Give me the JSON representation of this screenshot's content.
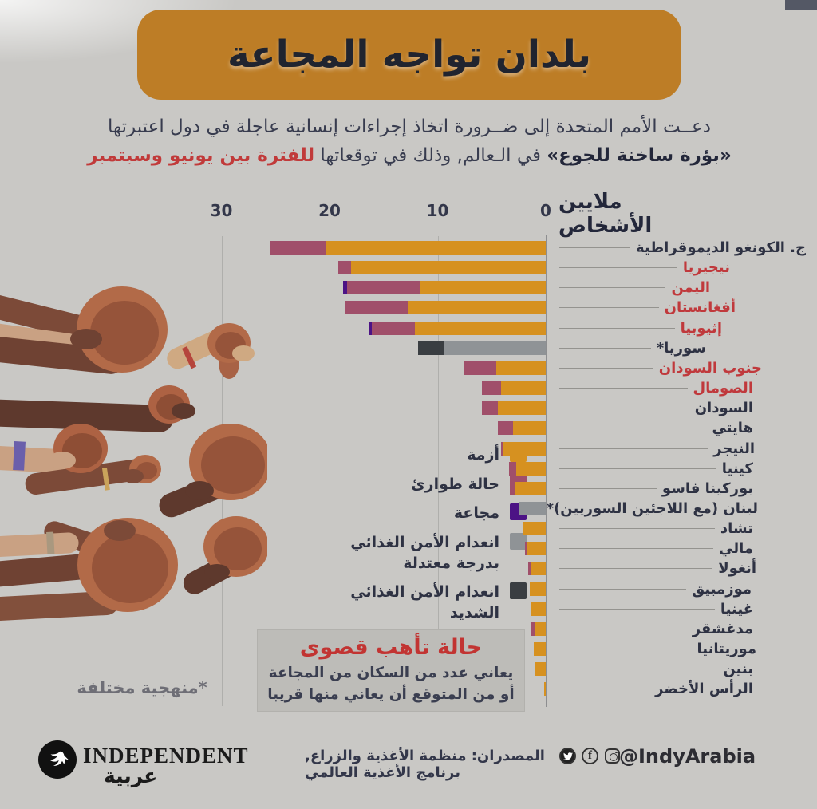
{
  "header": {
    "title": "بلدان تواجه المجاعة"
  },
  "intro": {
    "line1": "دعــت الأمم المتحدة إلى ضــرورة اتخاذ إجراءات إنسانية عاجلة في دول اعتبرتها",
    "line2_bold": "«بؤرة ساخنة للجوع»",
    "line2_mid": " في الـعالم, وذلك في توقعاتها ",
    "line2_red": "للفترة بين يونيو وسبتمبر"
  },
  "chart_data": {
    "type": "bar",
    "orientation": "horizontal-rtl",
    "axis_title": "ملايين الأشخاص",
    "unit": "millions of people",
    "xticks": [
      30,
      20,
      10,
      0
    ],
    "xlim": [
      0,
      31
    ],
    "grid": true,
    "legend_position": "middle-left",
    "legend": [
      {
        "key": "crisis",
        "label": "أزمة",
        "label2": "",
        "color": "#d69120"
      },
      {
        "key": "emergency",
        "label": "حالة طوارئ",
        "label2": "",
        "color": "#a04f6a"
      },
      {
        "key": "famine",
        "label": "مجاعة",
        "label2": "",
        "color": "#4c1385"
      },
      {
        "key": "moderate",
        "label": "انعدام الأمن الغذائي",
        "label2": "بدرجة معتدلة",
        "color": "#8f9396"
      },
      {
        "key": "severe",
        "label": "انعدام الأمن الغذائي",
        "label2": "الشديد",
        "color": "#3a3e42"
      }
    ],
    "countries": [
      {
        "name": "ج. الكونغو الديموقراطية",
        "red": false,
        "indent": 0,
        "segments": [
          {
            "type": "emergency",
            "value": 5.1
          },
          {
            "type": "crisis",
            "value": 20.4
          }
        ]
      },
      {
        "name": "نيجيريا",
        "red": true,
        "indent": 95,
        "segments": [
          {
            "type": "emergency",
            "value": 1.2
          },
          {
            "type": "crisis",
            "value": 18.0
          }
        ]
      },
      {
        "name": "اليمن",
        "red": true,
        "indent": 120,
        "segments": [
          {
            "type": "famine",
            "value": 0.35
          },
          {
            "type": "emergency",
            "value": 6.8
          },
          {
            "type": "crisis",
            "value": 11.6
          }
        ]
      },
      {
        "name": "أفغانستان",
        "red": true,
        "indent": 88,
        "segments": [
          {
            "type": "emergency",
            "value": 5.7
          },
          {
            "type": "crisis",
            "value": 12.8
          }
        ]
      },
      {
        "name": "إثيوبيا",
        "red": true,
        "indent": 105,
        "segments": [
          {
            "type": "famine",
            "value": 0.3
          },
          {
            "type": "emergency",
            "value": 4.0
          },
          {
            "type": "crisis",
            "value": 12.1
          }
        ]
      },
      {
        "name": "سوريا*",
        "red": false,
        "indent": 125,
        "segments": [
          {
            "type": "severe",
            "value": 2.4
          },
          {
            "type": "moderate",
            "value": 9.4
          }
        ]
      },
      {
        "name": "جنوب السودان",
        "red": true,
        "indent": 55,
        "segments": [
          {
            "type": "emergency",
            "value": 3.0
          },
          {
            "type": "crisis",
            "value": 4.6
          }
        ]
      },
      {
        "name": "الصومال",
        "red": true,
        "indent": 66,
        "segments": [
          {
            "type": "emergency",
            "value": 1.8
          },
          {
            "type": "crisis",
            "value": 4.1
          }
        ]
      },
      {
        "name": "السودان",
        "red": false,
        "indent": 66,
        "segments": [
          {
            "type": "emergency",
            "value": 1.5
          },
          {
            "type": "crisis",
            "value": 4.4
          }
        ]
      },
      {
        "name": "هايتي",
        "red": false,
        "indent": 66,
        "segments": [
          {
            "type": "emergency",
            "value": 1.4
          },
          {
            "type": "crisis",
            "value": 3.0
          }
        ]
      },
      {
        "name": "النيجر",
        "red": false,
        "indent": 64,
        "segments": [
          {
            "type": "emergency",
            "value": 0.25
          },
          {
            "type": "crisis",
            "value": 3.9
          }
        ]
      },
      {
        "name": "كينيا",
        "red": false,
        "indent": 66,
        "segments": [
          {
            "type": "emergency",
            "value": 0.7
          },
          {
            "type": "crisis",
            "value": 2.7
          }
        ]
      },
      {
        "name": "بوركينا فاسو",
        "red": false,
        "indent": 66,
        "segments": [
          {
            "type": "emergency",
            "value": 0.5
          },
          {
            "type": "crisis",
            "value": 2.8
          }
        ]
      },
      {
        "name": "لبنان (مع اللاجئين السوريين)*",
        "red": false,
        "indent": 60,
        "segments": [
          {
            "type": "moderate",
            "value": 2.4
          }
        ]
      },
      {
        "name": "تشاد",
        "red": false,
        "indent": 66,
        "segments": [
          {
            "type": "crisis",
            "value": 2.1
          }
        ]
      },
      {
        "name": "مالي",
        "red": false,
        "indent": 66,
        "segments": [
          {
            "type": "emergency",
            "value": 0.2
          },
          {
            "type": "crisis",
            "value": 1.7
          }
        ]
      },
      {
        "name": "أنغولا",
        "red": false,
        "indent": 62,
        "segments": [
          {
            "type": "emergency",
            "value": 0.2
          },
          {
            "type": "crisis",
            "value": 1.4
          }
        ]
      },
      {
        "name": "موزمبيق",
        "red": false,
        "indent": 68,
        "segments": [
          {
            "type": "crisis",
            "value": 1.5
          }
        ]
      },
      {
        "name": "غينيا",
        "red": false,
        "indent": 66,
        "segments": [
          {
            "type": "crisis",
            "value": 1.4
          }
        ]
      },
      {
        "name": "مدغشقر",
        "red": false,
        "indent": 66,
        "segments": [
          {
            "type": "emergency",
            "value": 0.3
          },
          {
            "type": "crisis",
            "value": 1.0
          }
        ]
      },
      {
        "name": "موريتانيا",
        "red": false,
        "indent": 62,
        "segments": [
          {
            "type": "crisis",
            "value": 1.1
          }
        ]
      },
      {
        "name": "بنين",
        "red": false,
        "indent": 66,
        "segments": [
          {
            "type": "crisis",
            "value": 1.0
          }
        ]
      },
      {
        "name": "الرأس الأخضر",
        "red": false,
        "indent": 66,
        "segments": [
          {
            "type": "crisis",
            "value": 0.15
          }
        ]
      }
    ]
  },
  "alert": {
    "title": "حالة تأهب قصوى",
    "line1": "يعاني عدد من السكان من المجاعة",
    "line2": "أو من المتوقع أن يعاني منها قريبا"
  },
  "footnote": "*منهجية مختلفة",
  "footer": {
    "logo_text": "INDEPENDENT",
    "logo_arabic": "عربية",
    "sources": "المصدران: منظمة الأغذية والزراع, برنامج الأغذية العالمي",
    "facebook_glyph": "f",
    "handle": "@IndyArabia"
  }
}
